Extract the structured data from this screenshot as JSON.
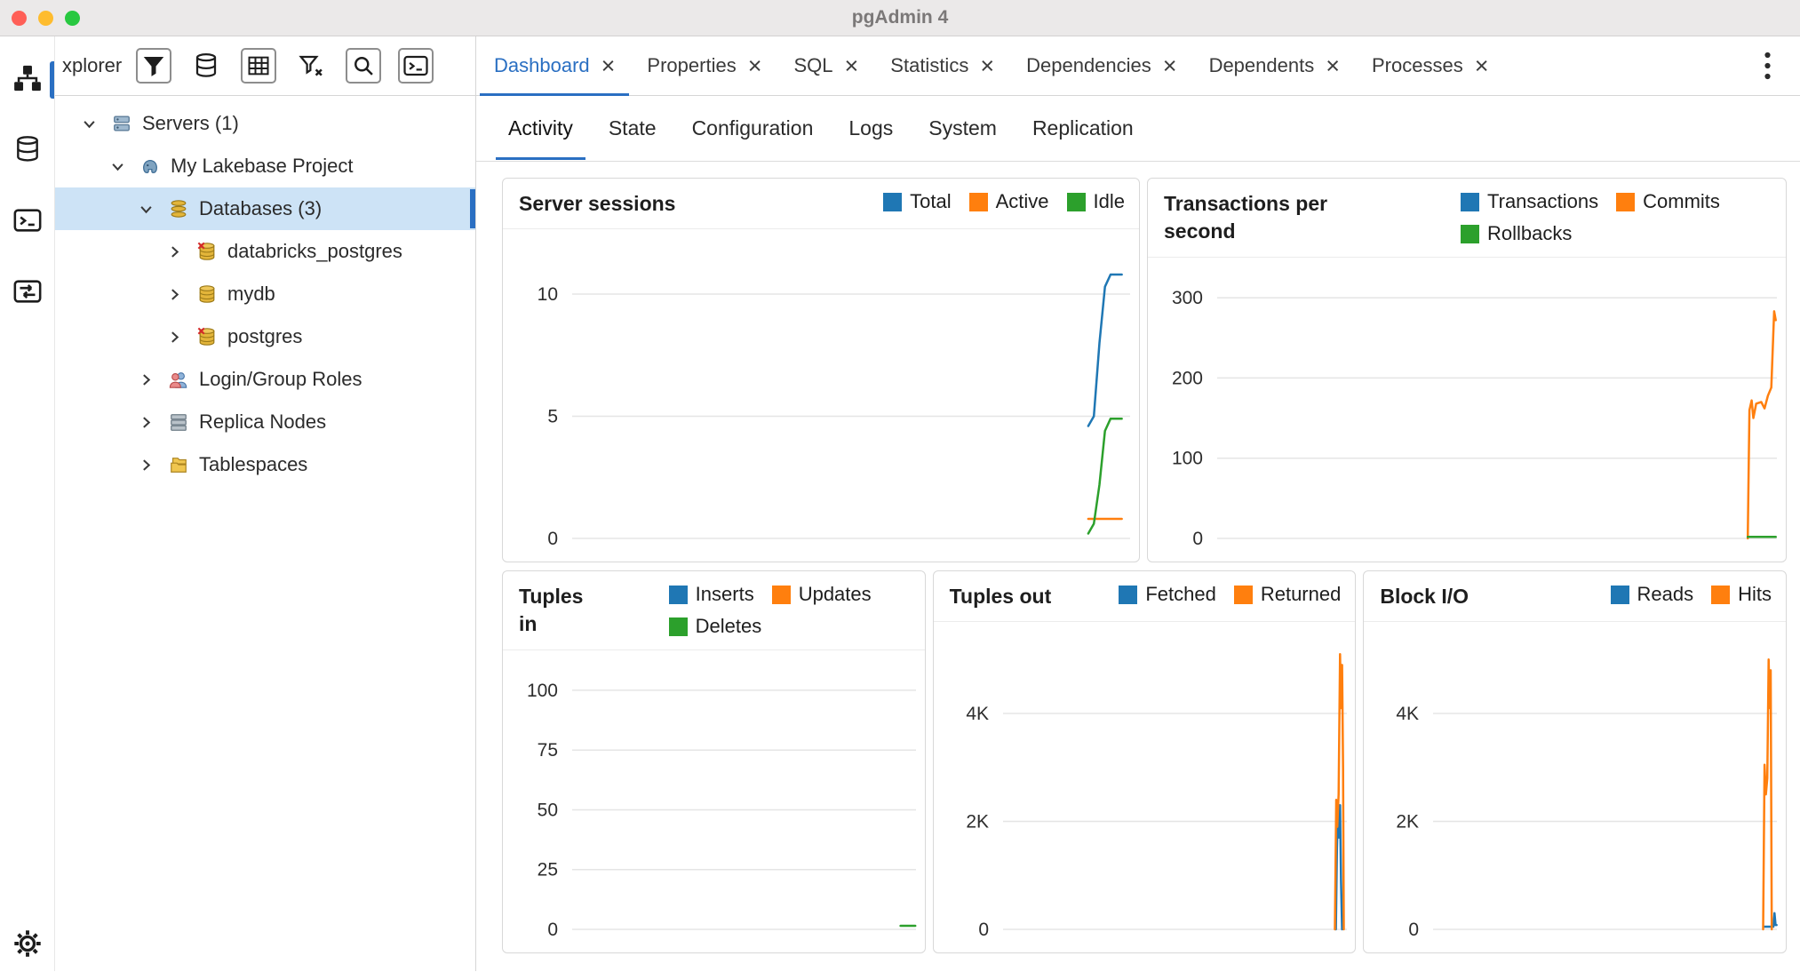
{
  "window": {
    "title": "pgAdmin 4"
  },
  "colors": {
    "accent": "#2a6fc2",
    "selection_bg": "#cde3f6",
    "chart_blue": "#1f77b4",
    "chart_orange": "#ff7f0e",
    "chart_green": "#2ca02c",
    "traffic": [
      "#ff5f57",
      "#febc2e",
      "#28c840"
    ]
  },
  "left_rail": {
    "top_icons": [
      "object-explorer-icon",
      "databases-icon",
      "psql-terminal-icon",
      "schema-diff-icon"
    ],
    "bottom_icons": [
      "settings-icon"
    ]
  },
  "explorer": {
    "header_label": "xplorer",
    "toolbar_icons": [
      "filter-icon",
      "database-icon",
      "grid-icon",
      "clear-filter-icon",
      "search-icon",
      "terminal-icon"
    ],
    "tree": [
      {
        "label": "Servers (1)",
        "icon": "servers",
        "level": 0,
        "expanded": true
      },
      {
        "label": "My Lakebase Project",
        "icon": "server",
        "level": 1,
        "expanded": true
      },
      {
        "label": "Databases (3)",
        "icon": "databases",
        "level": 2,
        "expanded": true,
        "selected": true
      },
      {
        "label": "databricks_postgres",
        "icon": "database-x",
        "level": 3,
        "expanded": false
      },
      {
        "label": "mydb",
        "icon": "database",
        "level": 3,
        "expanded": false
      },
      {
        "label": "postgres",
        "icon": "database-x",
        "level": 3,
        "expanded": false
      },
      {
        "label": "Login/Group Roles",
        "icon": "roles",
        "level": 2,
        "expanded": false
      },
      {
        "label": "Replica Nodes",
        "icon": "replica",
        "level": 2,
        "expanded": false
      },
      {
        "label": "Tablespaces",
        "icon": "tablespaces",
        "level": 2,
        "expanded": false
      }
    ]
  },
  "tabs": {
    "active": "Dashboard",
    "items": [
      {
        "label": "Dashboard",
        "closable": true
      },
      {
        "label": "Properties",
        "closable": true
      },
      {
        "label": "SQL",
        "closable": true
      },
      {
        "label": "Statistics",
        "closable": true
      },
      {
        "label": "Dependencies",
        "closable": true
      },
      {
        "label": "Dependents",
        "closable": true
      },
      {
        "label": "Processes",
        "closable": true
      }
    ]
  },
  "subtabs": {
    "active": "Activity",
    "items": [
      "Activity",
      "State",
      "Configuration",
      "Logs",
      "System",
      "Replication"
    ]
  },
  "chart_data": [
    {
      "type": "line",
      "title": "Server sessions",
      "ylim": [
        0,
        12
      ],
      "yticks": [
        {
          "v": 0,
          "label": "0"
        },
        {
          "v": 5,
          "label": "5"
        },
        {
          "v": 10,
          "label": "10"
        }
      ],
      "series": [
        {
          "name": "Total",
          "color": "#1f77b4",
          "points": [
            [
              92.5,
              4.6
            ],
            [
              93.5,
              5.0
            ],
            [
              94.5,
              8.0
            ],
            [
              95.5,
              10.3
            ],
            [
              96.5,
              10.8
            ],
            [
              98.5,
              10.8
            ]
          ]
        },
        {
          "name": "Active",
          "color": "#ff7f0e",
          "points": [
            [
              92.5,
              0.8
            ],
            [
              98.5,
              0.8
            ]
          ]
        },
        {
          "name": "Idle",
          "color": "#2ca02c",
          "points": [
            [
              92.5,
              0.2
            ],
            [
              93.5,
              0.6
            ],
            [
              94.5,
              2.2
            ],
            [
              95.5,
              4.4
            ],
            [
              96.5,
              4.9
            ],
            [
              98.5,
              4.9
            ]
          ]
        }
      ]
    },
    {
      "type": "line",
      "title": "Transactions per second",
      "ylim": [
        0,
        330
      ],
      "yticks": [
        {
          "v": 0,
          "label": "0"
        },
        {
          "v": 100,
          "label": "100"
        },
        {
          "v": 200,
          "label": "200"
        },
        {
          "v": 300,
          "label": "300"
        }
      ],
      "series": [
        {
          "name": "Transactions",
          "color": "#1f77b4",
          "points": []
        },
        {
          "name": "Commits",
          "color": "#ff7f0e",
          "points": [
            [
              94.8,
              0
            ],
            [
              95.1,
              160
            ],
            [
              95.5,
              172
            ],
            [
              95.8,
              150
            ],
            [
              96.3,
              168
            ],
            [
              97.2,
              170
            ],
            [
              97.8,
              162
            ],
            [
              98.4,
              178
            ],
            [
              99.0,
              188
            ],
            [
              99.5,
              283
            ],
            [
              99.8,
              272
            ]
          ]
        },
        {
          "name": "Rollbacks",
          "color": "#2ca02c",
          "points": [
            [
              94.8,
              2
            ],
            [
              99.8,
              2
            ]
          ]
        }
      ]
    },
    {
      "type": "line",
      "title": "Tuples in",
      "ylim": [
        0,
        110
      ],
      "yticks": [
        {
          "v": 0,
          "label": "0"
        },
        {
          "v": 25,
          "label": "25"
        },
        {
          "v": 50,
          "label": "50"
        },
        {
          "v": 75,
          "label": "75"
        },
        {
          "v": 100,
          "label": "100"
        }
      ],
      "series": [
        {
          "name": "Inserts",
          "color": "#1f77b4",
          "points": []
        },
        {
          "name": "Updates",
          "color": "#ff7f0e",
          "points": []
        },
        {
          "name": "Deletes",
          "color": "#2ca02c",
          "points": [
            [
              95.5,
              1.5
            ],
            [
              99.8,
              1.5
            ]
          ]
        }
      ]
    },
    {
      "type": "line",
      "title": "Tuples out",
      "ylim": [
        0,
        5400
      ],
      "yticks": [
        {
          "v": 0,
          "label": "0"
        },
        {
          "v": 2000,
          "label": "2K"
        },
        {
          "v": 4000,
          "label": "4K"
        }
      ],
      "series": [
        {
          "name": "Fetched",
          "color": "#1f77b4",
          "points": [
            [
              96.8,
              0
            ],
            [
              97.1,
              1500
            ],
            [
              97.4,
              2250
            ],
            [
              97.7,
              1700
            ],
            [
              98.0,
              2300
            ],
            [
              98.3,
              900
            ],
            [
              98.6,
              0
            ]
          ]
        },
        {
          "name": "Returned",
          "color": "#ff7f0e",
          "points": [
            [
              96.5,
              0
            ],
            [
              96.9,
              2400
            ],
            [
              97.2,
              1900
            ],
            [
              97.6,
              2500
            ],
            [
              98.0,
              5100
            ],
            [
              98.3,
              4100
            ],
            [
              98.6,
              4900
            ],
            [
              98.9,
              3000
            ],
            [
              99.1,
              0
            ]
          ]
        }
      ]
    },
    {
      "type": "line",
      "title": "Block I/O",
      "ylim": [
        0,
        5400
      ],
      "yticks": [
        {
          "v": 0,
          "label": "0"
        },
        {
          "v": 2000,
          "label": "2K"
        },
        {
          "v": 4000,
          "label": "4K"
        }
      ],
      "series": [
        {
          "name": "Reads",
          "color": "#1f77b4",
          "points": [
            [
              96.2,
              50
            ],
            [
              99.0,
              50
            ],
            [
              99.3,
              300
            ],
            [
              99.6,
              80
            ],
            [
              99.9,
              80
            ]
          ]
        },
        {
          "name": "Hits",
          "color": "#ff7f0e",
          "points": [
            [
              96.0,
              0
            ],
            [
              96.4,
              3050
            ],
            [
              96.8,
              2500
            ],
            [
              97.2,
              2800
            ],
            [
              97.6,
              5000
            ],
            [
              97.9,
              4100
            ],
            [
              98.2,
              4800
            ],
            [
              98.5,
              0
            ]
          ]
        }
      ]
    }
  ]
}
